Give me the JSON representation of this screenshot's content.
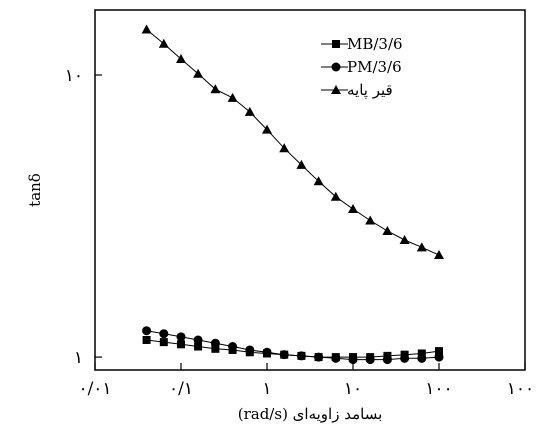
{
  "chart_data": {
    "type": "line",
    "title": "",
    "xlabel": "بسامد زاویه‌ای (rad/s)",
    "ylabel": "tanδ",
    "x_scale": "log",
    "y_scale": "log",
    "xlim": [
      0.01,
      1000
    ],
    "ylim": [
      0.9,
      17
    ],
    "grid": false,
    "legend_position": "top-right",
    "x_ticks": [
      {
        "value": 0.01,
        "label": "۰/۰۱"
      },
      {
        "value": 0.1,
        "label": "۰/۱"
      },
      {
        "value": 1,
        "label": "۱"
      },
      {
        "value": 10,
        "label": "۱۰"
      },
      {
        "value": 100,
        "label": "۱۰۰"
      },
      {
        "value": 1000,
        "label": "۱۰۰۰"
      }
    ],
    "y_ticks": [
      {
        "value": 1,
        "label": "۱"
      },
      {
        "value": 10,
        "label": "۱۰"
      }
    ],
    "x": [
      0.0398,
      0.0631,
      0.1,
      0.158,
      0.251,
      0.398,
      0.631,
      1,
      1.585,
      2.512,
      3.981,
      6.31,
      10,
      15.85,
      25.12,
      39.81,
      63.1,
      100
    ],
    "series": [
      {
        "name": "MB/3/6",
        "marker": "square",
        "values": [
          1.15,
          1.13,
          1.11,
          1.09,
          1.07,
          1.06,
          1.04,
          1.03,
          1.02,
          1.01,
          1.0,
          1.0,
          1.0,
          1.0,
          1.01,
          1.02,
          1.03,
          1.05
        ]
      },
      {
        "name": "PM/3/6",
        "marker": "circle",
        "values": [
          1.24,
          1.21,
          1.18,
          1.15,
          1.12,
          1.09,
          1.06,
          1.04,
          1.02,
          1.01,
          1.0,
          0.99,
          0.98,
          0.98,
          0.98,
          0.99,
          0.99,
          1.0
        ]
      },
      {
        "name": "قیر پایه",
        "marker": "triangle",
        "values": [
          14.5,
          12.9,
          11.4,
          10.1,
          8.9,
          8.3,
          7.4,
          6.4,
          5.5,
          4.8,
          4.2,
          3.7,
          3.35,
          3.05,
          2.8,
          2.6,
          2.45,
          2.3
        ]
      }
    ]
  }
}
